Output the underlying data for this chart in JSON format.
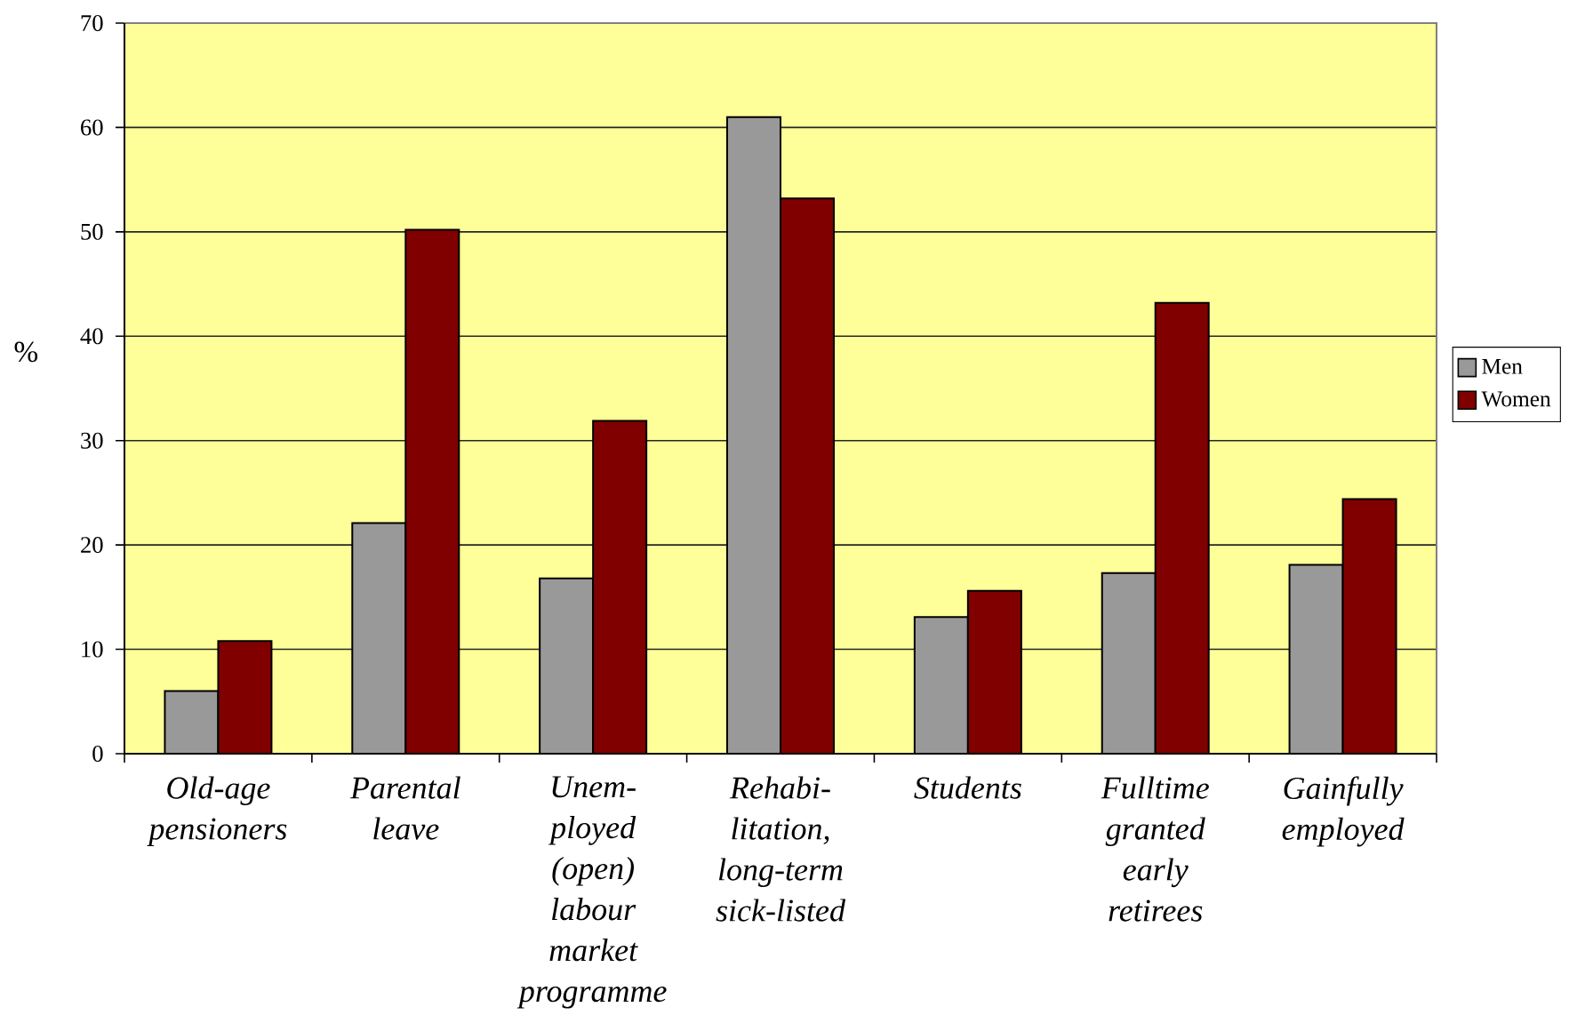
{
  "chart_data": {
    "type": "bar",
    "ylabel": "%",
    "categories": [
      "Old-age pensioners",
      "Parental leave",
      "Unem-ployed (open) labour market programme",
      "Rehabi-litation, long-term sick-listed",
      "Students",
      "Fulltime granted early retirees",
      "Gainfully employed"
    ],
    "series": [
      {
        "name": "Men",
        "color": "#999999",
        "values": [
          6,
          22.1,
          16.8,
          61,
          13.1,
          17.3,
          18.1
        ]
      },
      {
        "name": "Women",
        "color": "#800000",
        "values": [
          10.8,
          50.2,
          31.9,
          53.2,
          15.6,
          43.2,
          24.4
        ]
      }
    ],
    "ylim": [
      0,
      70
    ],
    "yticks": [
      0,
      10,
      20,
      30,
      40,
      50,
      60,
      70
    ],
    "grid": "y",
    "legend": "right"
  }
}
